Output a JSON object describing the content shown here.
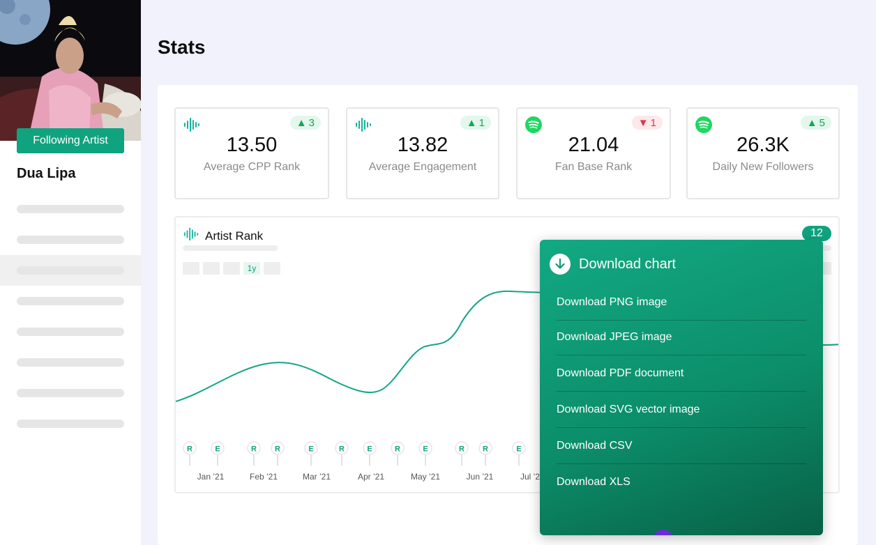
{
  "page": {
    "title": "Stats"
  },
  "sidebar": {
    "follow_label": "Following Artist",
    "artist_name": "Dua Lipa"
  },
  "stats": [
    {
      "icon": "soundwave-icon",
      "badge_dir": "up",
      "badge_value": "3",
      "value": "13.50",
      "label": "Average CPP Rank"
    },
    {
      "icon": "soundwave-icon",
      "badge_dir": "up",
      "badge_value": "1",
      "value": "13.82",
      "label": "Average Engagement"
    },
    {
      "icon": "spotify-icon",
      "badge_dir": "down",
      "badge_value": "1",
      "value": "21.04",
      "label": "Fan Base Rank"
    },
    {
      "icon": "spotify-icon",
      "badge_dir": "up",
      "badge_value": "5",
      "value": "26.3K",
      "label": "Daily New Followers"
    }
  ],
  "chart": {
    "title": "Artist Rank",
    "badge": "12",
    "range_active": "1y",
    "x_labels": [
      "Jan ’21",
      "Feb ’21",
      "Mar ’21",
      "Apr ’21",
      "May ’21",
      "Jun ’21",
      "Jul ’2"
    ],
    "event_pins": [
      "R",
      "E",
      "R",
      "R",
      "E",
      "R",
      "E",
      "R",
      "E",
      "R",
      "R",
      "E"
    ]
  },
  "download_menu": {
    "title": "Download chart",
    "items": [
      "Download PNG image",
      "Download JPEG image",
      "Download PDF document",
      "Download SVG vector image",
      "Download CSV",
      "Download XLS"
    ]
  },
  "colors": {
    "accent": "#10a37f",
    "up": "#1aa35c",
    "down": "#e3344b",
    "spotify": "#1ed760"
  }
}
